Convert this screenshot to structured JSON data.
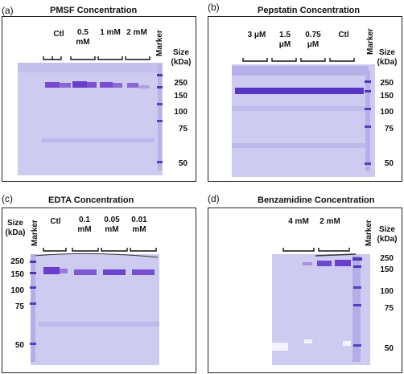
{
  "panels": {
    "a": {
      "letter": "(a)",
      "title": "PMSF Concentration",
      "lanes": [
        "Ctl",
        "0.5 mM",
        "1 mM",
        "2 mM"
      ],
      "marker_label": "Marker",
      "size_label": "Size (kDa)",
      "markers": [
        "250",
        "150",
        "100",
        "75",
        "50"
      ]
    },
    "b": {
      "letter": "(b)",
      "title": "Pepstatin Concentration",
      "lanes": [
        "3 μM",
        "1.5 μM",
        "0.75 μM",
        "Ctl"
      ],
      "marker_label": "Marker",
      "size_label": "Size (kDa)",
      "markers": [
        "250",
        "150",
        "100",
        "75",
        "50"
      ]
    },
    "c": {
      "letter": "(c)",
      "title": "EDTA Concentration",
      "lanes": [
        "Ctl",
        "0.1 mM",
        "0.05 mM",
        "0.01 mM"
      ],
      "marker_label": "Marker",
      "size_label": "Size (kDa)",
      "markers": [
        "250",
        "150",
        "100",
        "75",
        "50"
      ]
    },
    "d": {
      "letter": "(d)",
      "title": "Benzamidine Concentration",
      "lanes": [
        "4 mM",
        "2 mM"
      ],
      "marker_label": "Marker",
      "size_label": "Size (kDa)",
      "markers": [
        "250",
        "150",
        "100",
        "75",
        "50"
      ]
    }
  },
  "colors": {
    "gel": "#c9c8ef",
    "band": "#6a3fc6",
    "marker_band": "#5a3ac0",
    "frame": "#222222"
  }
}
